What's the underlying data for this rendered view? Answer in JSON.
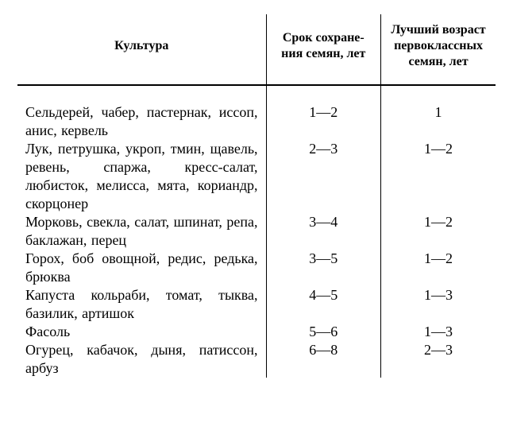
{
  "table": {
    "columns": [
      "Культура",
      "Срок сохране­ния семян, лет",
      "Лучший воз­раст перво­классных семян, лет"
    ],
    "rows": [
      {
        "crop": "Сельдерей, чабер, пастер­нак, иссоп, анис, кервель",
        "storage": "1—2",
        "best": "1"
      },
      {
        "crop": "Лук, петрушка, укроп, тмин, щавель, ревень, спаржа, кресс-салат, любисток, ме­лисса, мята, кориандр, скор­цонер",
        "storage": "2—3",
        "best": "1—2"
      },
      {
        "crop": "Морковь, свекла, салат, шпинат, репа, баклажан, перец",
        "storage": "3—4",
        "best": "1—2"
      },
      {
        "crop": "Горох, боб овощной, редис, редька, брюква",
        "storage": "3—5",
        "best": "1—2"
      },
      {
        "crop": "Капуста кольраби, томат, тыква, базилик, артишок",
        "storage": "4—5",
        "best": "1—3"
      },
      {
        "crop": "Фасоль",
        "storage": "5—6",
        "best": "1—3"
      },
      {
        "crop": "Огурец, кабачок, дыня, па­тиссон, арбуз",
        "storage": "6—8",
        "best": "2—3"
      }
    ]
  }
}
